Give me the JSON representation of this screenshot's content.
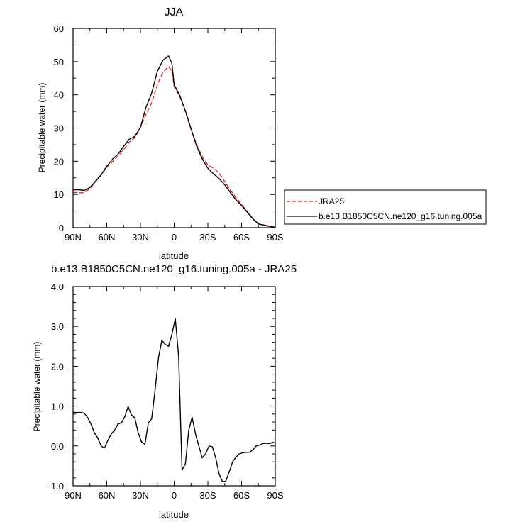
{
  "chart_data": [
    {
      "type": "line",
      "title": "JJA",
      "xlabel": "latitude",
      "ylabel": "Precipitable water (mm)",
      "xlim": [
        90,
        -90
      ],
      "ylim": [
        0,
        60
      ],
      "x_ticks": [
        90,
        60,
        30,
        0,
        -30,
        -60,
        -90
      ],
      "x_tick_labels": [
        "90N",
        "60N",
        "30N",
        "0",
        "30S",
        "60S",
        "90S"
      ],
      "y_ticks": [
        0,
        10,
        20,
        30,
        40,
        50,
        60
      ],
      "y_tick_labels": [
        "0",
        "10",
        "20",
        "30",
        "40",
        "50",
        "60"
      ],
      "legend": {
        "placement": "right",
        "entries": [
          "JRA25",
          "b.e13.B1850C5CN.ne120_g16.tuning.005a"
        ]
      },
      "series": [
        {
          "name": "JRA25",
          "color": "#e0201b",
          "dash": "dashed",
          "x": [
            90,
            85,
            80,
            75,
            70,
            65,
            60,
            55,
            50,
            45,
            40,
            35,
            30,
            25,
            20,
            15,
            10,
            5,
            2,
            0,
            -5,
            -10,
            -15,
            -20,
            -25,
            -30,
            -35,
            -40,
            -45,
            -50,
            -55,
            -60,
            -65,
            -70,
            -75,
            -80,
            -85,
            -90
          ],
          "y": [
            10.6,
            10.5,
            10.5,
            11.8,
            13.8,
            15.9,
            18.2,
            19.9,
            21.5,
            23.5,
            25.8,
            27.1,
            30.2,
            34.1,
            37.6,
            43.0,
            46.8,
            48.5,
            47.2,
            42.5,
            39.5,
            35.0,
            29.5,
            25.0,
            21.3,
            18.9,
            17.9,
            16.4,
            13.9,
            11.3,
            9.1,
            7.0,
            4.9,
            2.8,
            1.1,
            0.7,
            0.3,
            0.0
          ]
        },
        {
          "name": "b.e13.B1850C5CN.ne120_g16.tuning.005a",
          "color": "#000000",
          "dash": "solid",
          "x": [
            90,
            85,
            80,
            75,
            70,
            65,
            60,
            55,
            50,
            45,
            40,
            35,
            30,
            25,
            20,
            15,
            10,
            5,
            2,
            0,
            -5,
            -10,
            -15,
            -20,
            -25,
            -30,
            -35,
            -40,
            -45,
            -50,
            -55,
            -60,
            -65,
            -70,
            -75,
            -80,
            -85,
            -90
          ],
          "y": [
            11.4,
            11.4,
            11.2,
            12.1,
            14.0,
            15.9,
            18.5,
            20.6,
            22.1,
            24.5,
            26.6,
            27.5,
            30.2,
            36.3,
            40.5,
            47.1,
            50.4,
            51.7,
            49.5,
            43.0,
            39.8,
            35.2,
            29.8,
            24.5,
            20.7,
            17.9,
            16.2,
            14.8,
            12.9,
            10.6,
            8.4,
            6.7,
            4.7,
            2.7,
            1.1,
            0.8,
            0.4,
            0.1
          ]
        }
      ]
    },
    {
      "type": "line",
      "title": "b.e13.B1850C5CN.ne120_g16.tuning.005a - JRA25",
      "xlabel": "latitude",
      "ylabel": "Precipitable water (mm)",
      "xlim": [
        90,
        -90
      ],
      "ylim": [
        -1.0,
        4.0
      ],
      "x_ticks": [
        90,
        60,
        30,
        0,
        -30,
        -60,
        -90
      ],
      "x_tick_labels": [
        "90N",
        "60N",
        "30N",
        "0",
        "30S",
        "60S",
        "90S"
      ],
      "y_ticks": [
        -1.0,
        0.0,
        1.0,
        2.0,
        3.0,
        4.0
      ],
      "y_tick_labels": [
        "-1.0",
        "0.0",
        "1.0",
        "2.0",
        "3.0",
        "4.0"
      ],
      "series": [
        {
          "color": "#000000",
          "dash": "solid",
          "x": [
            90,
            86,
            83,
            80,
            77,
            74,
            71,
            68,
            65,
            62,
            59,
            56,
            53,
            50,
            47,
            44,
            41,
            38,
            35,
            32,
            29,
            26,
            23,
            20,
            17,
            14,
            11,
            8,
            5,
            2,
            -1,
            -4,
            -7,
            -10,
            -13,
            -16,
            -19,
            -22,
            -25,
            -28,
            -31,
            -34,
            -37,
            -40,
            -43,
            -46,
            -49,
            -52,
            -55,
            -58,
            -61,
            -64,
            -67,
            -70,
            -73,
            -76,
            -79,
            -82,
            -85,
            -88,
            -90
          ],
          "y": [
            0.84,
            0.84,
            0.84,
            0.82,
            0.71,
            0.55,
            0.33,
            0.2,
            0.0,
            -0.05,
            0.14,
            0.3,
            0.4,
            0.55,
            0.58,
            0.73,
            0.99,
            0.78,
            0.7,
            0.33,
            0.1,
            0.04,
            0.58,
            0.68,
            1.4,
            2.2,
            2.65,
            2.55,
            2.5,
            2.8,
            3.2,
            2.25,
            -0.6,
            -0.45,
            0.4,
            0.72,
            0.3,
            0.0,
            -0.3,
            -0.2,
            0.0,
            -0.02,
            -0.3,
            -0.7,
            -0.9,
            -0.88,
            -0.65,
            -0.4,
            -0.28,
            -0.2,
            -0.17,
            -0.16,
            -0.16,
            -0.1,
            0.0,
            0.02,
            0.06,
            0.07,
            0.06,
            0.09,
            0.07
          ]
        }
      ]
    }
  ]
}
